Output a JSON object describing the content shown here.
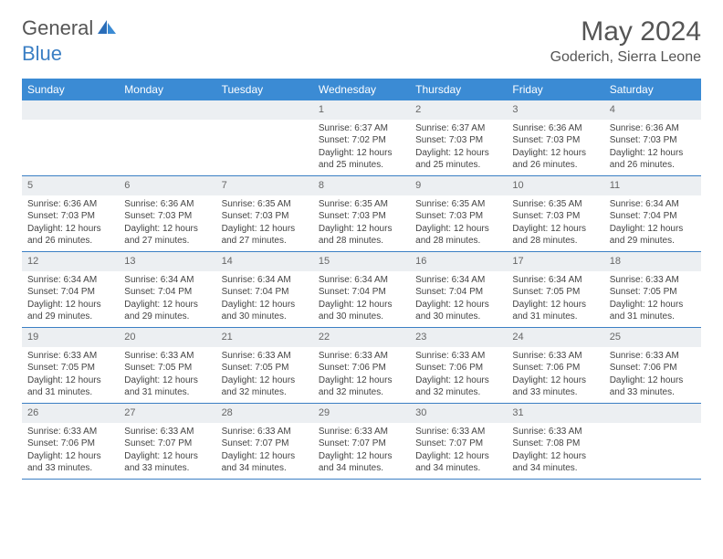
{
  "brand": {
    "text_gray": "General",
    "text_blue": "Blue"
  },
  "title": "May 2024",
  "subtitle": "Goderich, Sierra Leone",
  "colors": {
    "header_bg": "#3b8bd4",
    "header_text": "#ffffff",
    "num_bg": "#eceff2",
    "border": "#3b7fc4",
    "body_text": "#444444"
  },
  "day_names": [
    "Sunday",
    "Monday",
    "Tuesday",
    "Wednesday",
    "Thursday",
    "Friday",
    "Saturday"
  ],
  "weeks": [
    [
      {
        "n": "",
        "sunrise": "",
        "sunset": "",
        "daylight": ""
      },
      {
        "n": "",
        "sunrise": "",
        "sunset": "",
        "daylight": ""
      },
      {
        "n": "",
        "sunrise": "",
        "sunset": "",
        "daylight": ""
      },
      {
        "n": "1",
        "sunrise": "Sunrise: 6:37 AM",
        "sunset": "Sunset: 7:02 PM",
        "daylight": "Daylight: 12 hours and 25 minutes."
      },
      {
        "n": "2",
        "sunrise": "Sunrise: 6:37 AM",
        "sunset": "Sunset: 7:03 PM",
        "daylight": "Daylight: 12 hours and 25 minutes."
      },
      {
        "n": "3",
        "sunrise": "Sunrise: 6:36 AM",
        "sunset": "Sunset: 7:03 PM",
        "daylight": "Daylight: 12 hours and 26 minutes."
      },
      {
        "n": "4",
        "sunrise": "Sunrise: 6:36 AM",
        "sunset": "Sunset: 7:03 PM",
        "daylight": "Daylight: 12 hours and 26 minutes."
      }
    ],
    [
      {
        "n": "5",
        "sunrise": "Sunrise: 6:36 AM",
        "sunset": "Sunset: 7:03 PM",
        "daylight": "Daylight: 12 hours and 26 minutes."
      },
      {
        "n": "6",
        "sunrise": "Sunrise: 6:36 AM",
        "sunset": "Sunset: 7:03 PM",
        "daylight": "Daylight: 12 hours and 27 minutes."
      },
      {
        "n": "7",
        "sunrise": "Sunrise: 6:35 AM",
        "sunset": "Sunset: 7:03 PM",
        "daylight": "Daylight: 12 hours and 27 minutes."
      },
      {
        "n": "8",
        "sunrise": "Sunrise: 6:35 AM",
        "sunset": "Sunset: 7:03 PM",
        "daylight": "Daylight: 12 hours and 28 minutes."
      },
      {
        "n": "9",
        "sunrise": "Sunrise: 6:35 AM",
        "sunset": "Sunset: 7:03 PM",
        "daylight": "Daylight: 12 hours and 28 minutes."
      },
      {
        "n": "10",
        "sunrise": "Sunrise: 6:35 AM",
        "sunset": "Sunset: 7:03 PM",
        "daylight": "Daylight: 12 hours and 28 minutes."
      },
      {
        "n": "11",
        "sunrise": "Sunrise: 6:34 AM",
        "sunset": "Sunset: 7:04 PM",
        "daylight": "Daylight: 12 hours and 29 minutes."
      }
    ],
    [
      {
        "n": "12",
        "sunrise": "Sunrise: 6:34 AM",
        "sunset": "Sunset: 7:04 PM",
        "daylight": "Daylight: 12 hours and 29 minutes."
      },
      {
        "n": "13",
        "sunrise": "Sunrise: 6:34 AM",
        "sunset": "Sunset: 7:04 PM",
        "daylight": "Daylight: 12 hours and 29 minutes."
      },
      {
        "n": "14",
        "sunrise": "Sunrise: 6:34 AM",
        "sunset": "Sunset: 7:04 PM",
        "daylight": "Daylight: 12 hours and 30 minutes."
      },
      {
        "n": "15",
        "sunrise": "Sunrise: 6:34 AM",
        "sunset": "Sunset: 7:04 PM",
        "daylight": "Daylight: 12 hours and 30 minutes."
      },
      {
        "n": "16",
        "sunrise": "Sunrise: 6:34 AM",
        "sunset": "Sunset: 7:04 PM",
        "daylight": "Daylight: 12 hours and 30 minutes."
      },
      {
        "n": "17",
        "sunrise": "Sunrise: 6:34 AM",
        "sunset": "Sunset: 7:05 PM",
        "daylight": "Daylight: 12 hours and 31 minutes."
      },
      {
        "n": "18",
        "sunrise": "Sunrise: 6:33 AM",
        "sunset": "Sunset: 7:05 PM",
        "daylight": "Daylight: 12 hours and 31 minutes."
      }
    ],
    [
      {
        "n": "19",
        "sunrise": "Sunrise: 6:33 AM",
        "sunset": "Sunset: 7:05 PM",
        "daylight": "Daylight: 12 hours and 31 minutes."
      },
      {
        "n": "20",
        "sunrise": "Sunrise: 6:33 AM",
        "sunset": "Sunset: 7:05 PM",
        "daylight": "Daylight: 12 hours and 31 minutes."
      },
      {
        "n": "21",
        "sunrise": "Sunrise: 6:33 AM",
        "sunset": "Sunset: 7:05 PM",
        "daylight": "Daylight: 12 hours and 32 minutes."
      },
      {
        "n": "22",
        "sunrise": "Sunrise: 6:33 AM",
        "sunset": "Sunset: 7:06 PM",
        "daylight": "Daylight: 12 hours and 32 minutes."
      },
      {
        "n": "23",
        "sunrise": "Sunrise: 6:33 AM",
        "sunset": "Sunset: 7:06 PM",
        "daylight": "Daylight: 12 hours and 32 minutes."
      },
      {
        "n": "24",
        "sunrise": "Sunrise: 6:33 AM",
        "sunset": "Sunset: 7:06 PM",
        "daylight": "Daylight: 12 hours and 33 minutes."
      },
      {
        "n": "25",
        "sunrise": "Sunrise: 6:33 AM",
        "sunset": "Sunset: 7:06 PM",
        "daylight": "Daylight: 12 hours and 33 minutes."
      }
    ],
    [
      {
        "n": "26",
        "sunrise": "Sunrise: 6:33 AM",
        "sunset": "Sunset: 7:06 PM",
        "daylight": "Daylight: 12 hours and 33 minutes."
      },
      {
        "n": "27",
        "sunrise": "Sunrise: 6:33 AM",
        "sunset": "Sunset: 7:07 PM",
        "daylight": "Daylight: 12 hours and 33 minutes."
      },
      {
        "n": "28",
        "sunrise": "Sunrise: 6:33 AM",
        "sunset": "Sunset: 7:07 PM",
        "daylight": "Daylight: 12 hours and 34 minutes."
      },
      {
        "n": "29",
        "sunrise": "Sunrise: 6:33 AM",
        "sunset": "Sunset: 7:07 PM",
        "daylight": "Daylight: 12 hours and 34 minutes."
      },
      {
        "n": "30",
        "sunrise": "Sunrise: 6:33 AM",
        "sunset": "Sunset: 7:07 PM",
        "daylight": "Daylight: 12 hours and 34 minutes."
      },
      {
        "n": "31",
        "sunrise": "Sunrise: 6:33 AM",
        "sunset": "Sunset: 7:08 PM",
        "daylight": "Daylight: 12 hours and 34 minutes."
      },
      {
        "n": "",
        "sunrise": "",
        "sunset": "",
        "daylight": ""
      }
    ]
  ]
}
